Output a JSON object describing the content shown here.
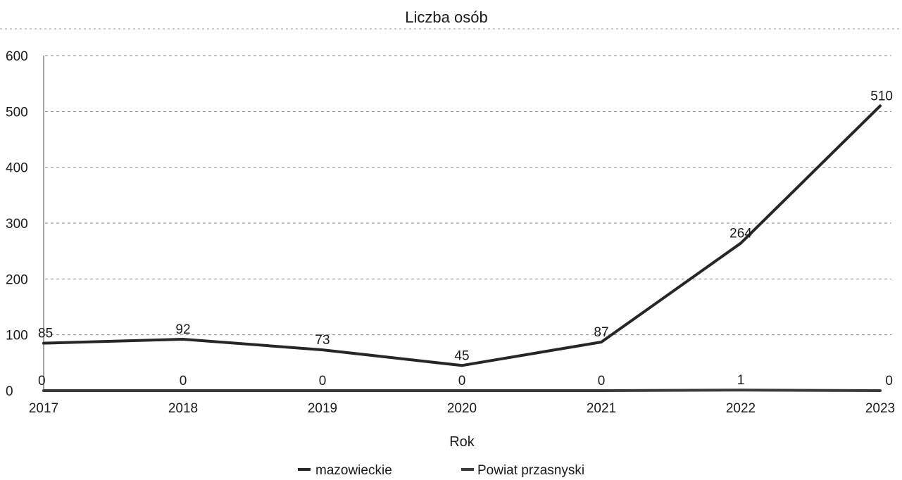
{
  "chart_data": {
    "type": "line",
    "title": "Liczba osób",
    "xlabel": "Rok",
    "ylabel": "",
    "categories": [
      "2017",
      "2018",
      "2019",
      "2020",
      "2021",
      "2022",
      "2023"
    ],
    "ylim": [
      0,
      600
    ],
    "yticks": [
      0,
      100,
      200,
      300,
      400,
      500,
      600
    ],
    "ytick_labels": [
      "0",
      "100",
      "200",
      "300",
      "400",
      "500",
      "600"
    ],
    "grid": true,
    "legend_position": "bottom-center",
    "series": [
      {
        "name": "mazowieckie",
        "values": [
          85,
          92,
          73,
          45,
          87,
          264,
          510
        ],
        "labels": [
          "85",
          "92",
          "73",
          "45",
          "87",
          "264",
          "510"
        ],
        "color": "#262626"
      },
      {
        "name": "Powiat przasnyski",
        "values": [
          0,
          0,
          0,
          0,
          0,
          1,
          0
        ],
        "labels": [
          "0",
          "0",
          "0",
          "0",
          "0",
          "1",
          "0"
        ],
        "color": "#3a3a3a"
      }
    ]
  }
}
